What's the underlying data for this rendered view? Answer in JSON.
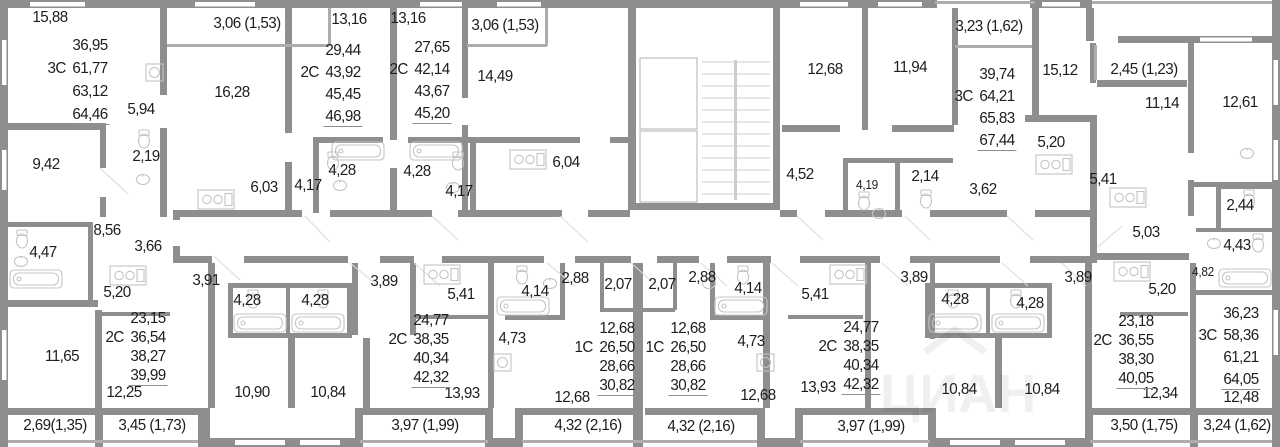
{
  "apartments": [
    {
      "code": "3C",
      "areas": [
        "36,95",
        "61,77",
        "63,12",
        "64,46"
      ]
    },
    {
      "code": "2C",
      "areas": [
        "29,44",
        "43,92",
        "45,45",
        "46,98"
      ]
    },
    {
      "code": "2C",
      "areas": [
        "27,65",
        "42,14",
        "43,67",
        "45,20"
      ]
    },
    {
      "code": "3C",
      "areas": [
        "39,74",
        "64,21",
        "65,83",
        "67,44"
      ]
    },
    {
      "code": "2C",
      "areas": [
        "23,15",
        "36,54",
        "38,27",
        "39,99"
      ]
    },
    {
      "code": "2C",
      "areas": [
        "24,77",
        "38,35",
        "40,34",
        "42,32"
      ]
    },
    {
      "code": "1C",
      "areas": [
        "12,68",
        "26,50",
        "28,66",
        "30,82"
      ]
    },
    {
      "code": "1C",
      "areas": [
        "12,68",
        "26,50",
        "28,66",
        "30,82"
      ]
    },
    {
      "code": "2C",
      "areas": [
        "24,77",
        "38,35",
        "40,34",
        "42,32"
      ]
    },
    {
      "code": "2C",
      "areas": [
        "23,18",
        "36,55",
        "38,30",
        "40,05"
      ]
    },
    {
      "code": "3C",
      "areas": [
        "36,23",
        "58,36",
        "61,21",
        "64,05"
      ]
    }
  ],
  "room_labels": [
    "15,88",
    "5,94",
    "9,42",
    "2,19",
    "8,56",
    "4,47",
    "3,66",
    "5,20",
    "11,65",
    "12,25",
    "2,69(1,35)",
    "3,45 (1,73)",
    "3,06 (1,53)",
    "16,28",
    "13,16",
    "6,03",
    "4,17",
    "4,28",
    "13,16",
    "3,06 (1,53)",
    "14,49",
    "4,28",
    "4,17",
    "6,04",
    "12,68",
    "11,94",
    "3,23 (1,62)",
    "4,52",
    "4,19",
    "2,14",
    "3,62",
    "15,12",
    "2,45 (1,23)",
    "11,14",
    "12,61",
    "5,20",
    "5,41",
    "2,44",
    "5,03",
    "4,43",
    "4,82",
    "3,91",
    "4,28",
    "4,28",
    "3,89",
    "5,41",
    "10,90",
    "10,84",
    "13,93",
    "3,97 (1,99)",
    "4,73",
    "4,14",
    "2,88",
    "2,07",
    "12,68",
    "4,32 (2,16)",
    "2,07",
    "2,88",
    "4,14",
    "4,73",
    "12,68",
    "4,32 (2,16)",
    "5,41",
    "13,93",
    "3,89",
    "4,28",
    "4,28",
    "10,84",
    "10,84",
    "3,97 (1,99)",
    "3,89",
    "5,20",
    "12,34",
    "3,50 (1,75)",
    "12,48",
    "3,24 (1,62)"
  ],
  "watermark": "ЦИАН"
}
